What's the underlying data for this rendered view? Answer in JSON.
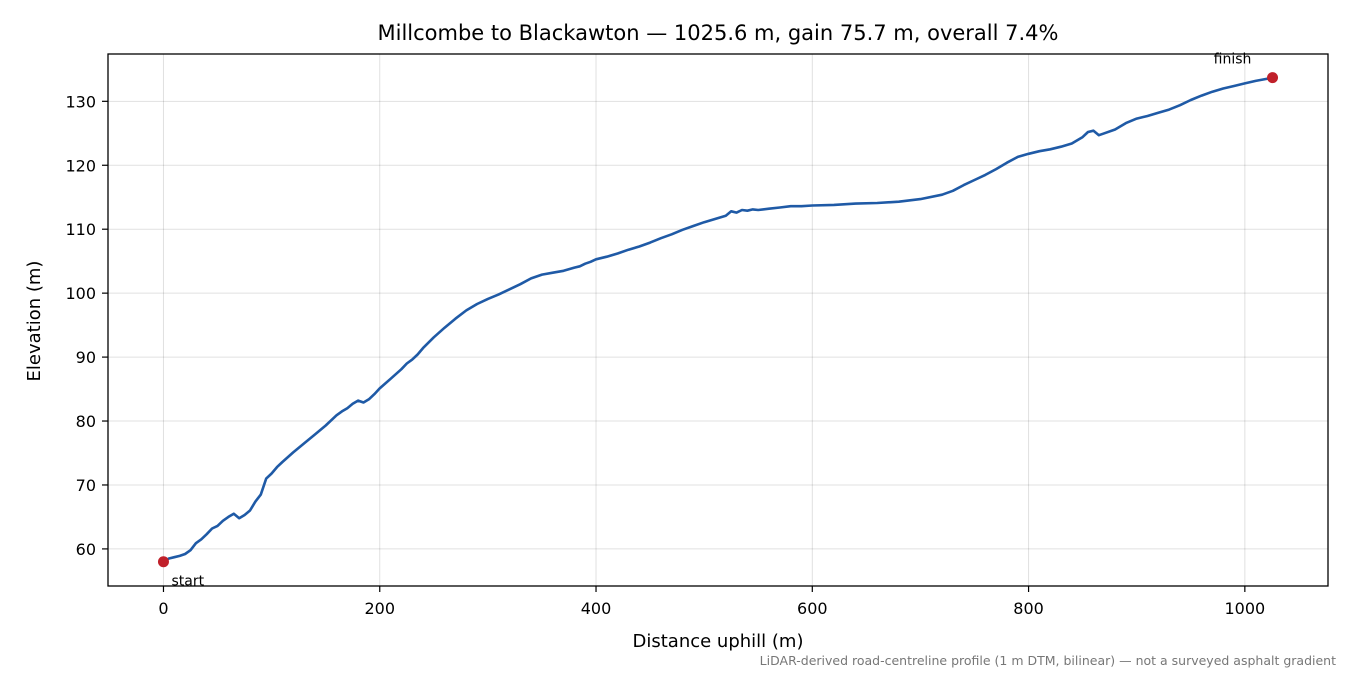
{
  "chart_data": {
    "type": "line",
    "title": "Millcombe to Blackawton — 1025.6 m, gain 75.7 m, overall 7.4%",
    "xlabel": "Distance uphill (m)",
    "ylabel": "Elevation (m)",
    "xlim": [
      -51.3,
      1076.9
    ],
    "ylim": [
      54.2,
      137.4
    ],
    "xticks": [
      0,
      200,
      400,
      600,
      800,
      1000
    ],
    "yticks": [
      60,
      70,
      80,
      90,
      100,
      110,
      120,
      130
    ],
    "grid": true,
    "line_color": "#1f5aa6",
    "marker_color": "#c0202a",
    "series": [
      {
        "x": [
          0,
          5,
          10,
          15,
          20,
          25,
          30,
          35,
          40,
          45,
          50,
          55,
          60,
          65,
          70,
          75,
          80,
          85,
          90,
          95,
          100,
          105,
          110,
          120,
          130,
          140,
          150,
          160,
          165,
          170,
          175,
          180,
          185,
          190,
          195,
          200,
          210,
          220,
          225,
          230,
          235,
          240,
          250,
          260,
          270,
          280,
          290,
          300,
          310,
          320,
          330,
          340,
          350,
          360,
          370,
          380,
          385,
          390,
          395,
          400,
          410,
          420,
          430,
          440,
          450,
          460,
          470,
          480,
          490,
          500,
          510,
          520,
          525,
          530,
          535,
          540,
          545,
          550,
          560,
          570,
          580,
          590,
          600,
          620,
          640,
          660,
          680,
          700,
          720,
          730,
          740,
          750,
          760,
          770,
          780,
          790,
          800,
          810,
          820,
          830,
          840,
          850,
          855,
          860,
          865,
          870,
          880,
          890,
          900,
          910,
          920,
          930,
          940,
          950,
          960,
          970,
          980,
          990,
          1000,
          1010,
          1020,
          1025.6
        ],
        "y": [
          58.0,
          58.5,
          58.7,
          58.9,
          59.2,
          59.8,
          60.9,
          61.5,
          62.3,
          63.2,
          63.6,
          64.4,
          65.0,
          65.5,
          64.8,
          65.3,
          66.0,
          67.4,
          68.5,
          71.0,
          71.8,
          72.8,
          73.6,
          75.1,
          76.5,
          77.9,
          79.3,
          80.9,
          81.5,
          82.0,
          82.7,
          83.2,
          82.9,
          83.4,
          84.2,
          85.1,
          86.6,
          88.1,
          89.0,
          89.6,
          90.4,
          91.4,
          93.1,
          94.6,
          96.0,
          97.3,
          98.3,
          99.1,
          99.8,
          100.6,
          101.4,
          102.3,
          102.9,
          103.2,
          103.5,
          104.0,
          104.2,
          104.6,
          104.9,
          105.3,
          105.7,
          106.2,
          106.8,
          107.3,
          107.9,
          108.6,
          109.2,
          109.9,
          110.5,
          111.1,
          111.6,
          112.1,
          112.8,
          112.6,
          113.0,
          112.9,
          113.1,
          113.0,
          113.2,
          113.4,
          113.6,
          113.6,
          113.7,
          113.8,
          114.0,
          114.1,
          114.3,
          114.7,
          115.4,
          116.0,
          116.9,
          117.7,
          118.5,
          119.4,
          120.4,
          121.3,
          121.8,
          122.2,
          122.5,
          122.9,
          123.4,
          124.4,
          125.2,
          125.4,
          124.7,
          125.0,
          125.6,
          126.6,
          127.3,
          127.7,
          128.2,
          128.7,
          129.4,
          130.2,
          130.9,
          131.5,
          132.0,
          132.4,
          132.8,
          133.2,
          133.5,
          133.7
        ]
      }
    ],
    "annotations": [
      {
        "text": "start",
        "x": 0,
        "y": 58.0
      },
      {
        "text": "finish",
        "x": 1025.6,
        "y": 133.7
      }
    ],
    "footnote": "LiDAR-derived road-centreline profile (1 m DTM, bilinear) — not a surveyed asphalt gradient"
  }
}
